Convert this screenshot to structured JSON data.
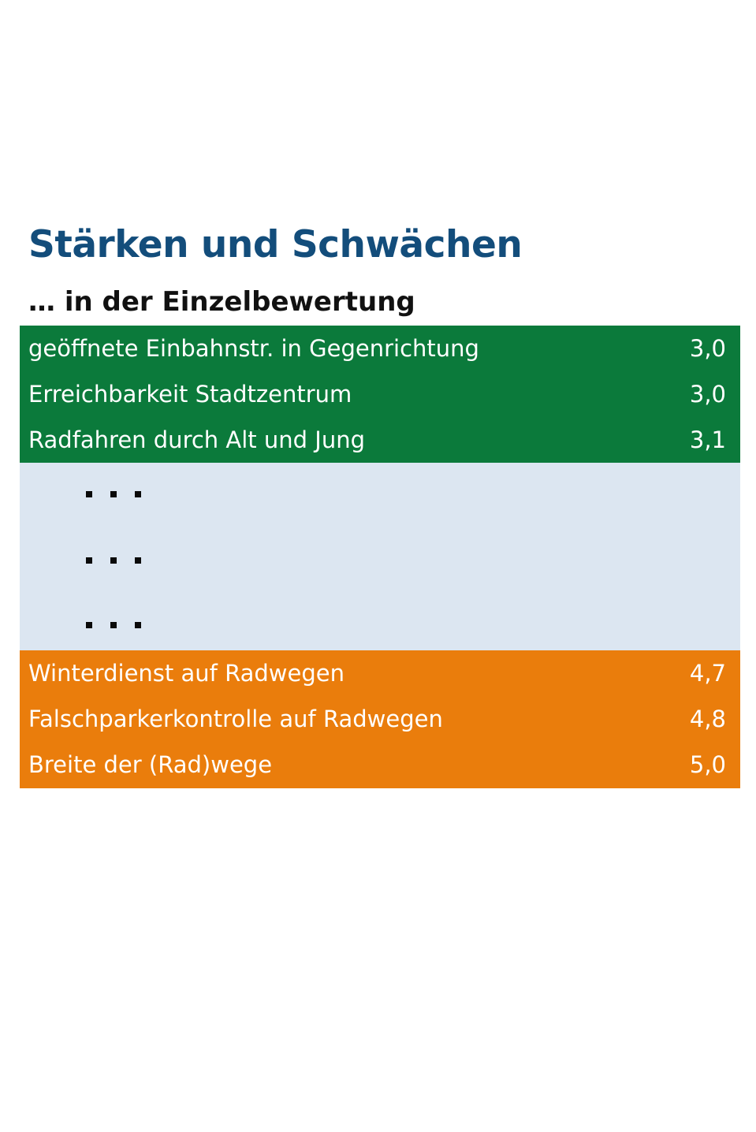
{
  "title": "Stärken und Schwächen",
  "subtitle": "… in der Einzelbewertung",
  "colors": {
    "title": "#134d7b",
    "strengths_background": "#0b7a3b",
    "middle_background": "#dce6f1",
    "weaknesses_background": "#ea7d0c"
  },
  "strengths": [
    {
      "label": "geöffnete Einbahnstr. in Gegenrichtung",
      "value": "3,0"
    },
    {
      "label": "Erreichbarkeit Stadtzentrum",
      "value": "3,0"
    },
    {
      "label": "Radfahren durch Alt und Jung",
      "value": "3,1"
    }
  ],
  "middle_ellipsis_rows": 3,
  "weaknesses": [
    {
      "label": "Winterdienst auf Radwegen",
      "value": "4,7"
    },
    {
      "label": "Falschparkerkontrolle auf Radwegen",
      "value": "4,8"
    },
    {
      "label": "Breite der (Rad)wege",
      "value": "5,0"
    }
  ]
}
